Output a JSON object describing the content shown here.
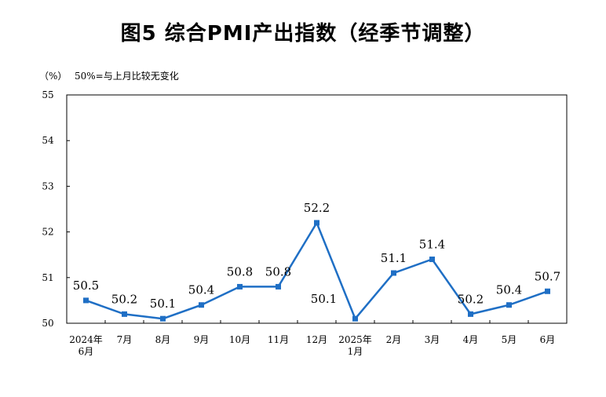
{
  "chart_data": {
    "type": "line",
    "title": "图5  综合PMI产出指数（经季节调整）",
    "unit": "（%）",
    "note": "50%=与上月比较无变化",
    "categories": [
      [
        "2024年",
        "6月"
      ],
      [
        "7月"
      ],
      [
        "8月"
      ],
      [
        "9月"
      ],
      [
        "10月"
      ],
      [
        "11月"
      ],
      [
        "12月"
      ],
      [
        "2025年",
        "1月"
      ],
      [
        "2月"
      ],
      [
        "3月"
      ],
      [
        "4月"
      ],
      [
        "5月"
      ],
      [
        "6月"
      ]
    ],
    "series": [
      {
        "values": [
          50.5,
          50.2,
          50.1,
          50.4,
          50.8,
          50.8,
          52.2,
          50.1,
          51.1,
          51.4,
          50.2,
          50.4,
          50.7
        ],
        "color": "#1F6FC5"
      }
    ],
    "data_labels": [
      "50.5",
      "50.2",
      "50.1",
      "50.4",
      "50.8",
      "50.8",
      "52.2",
      "50.1",
      "51.1",
      "51.4",
      "50.2",
      "50.4",
      "50.7"
    ],
    "yticks": [
      "50",
      "51",
      "52",
      "53",
      "54",
      "55"
    ],
    "ylim": [
      50,
      55
    ],
    "grid": false,
    "legend": "none"
  }
}
